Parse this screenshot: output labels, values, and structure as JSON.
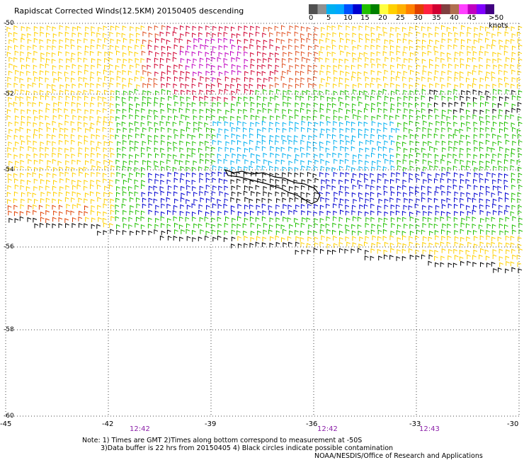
{
  "title": "Rapidscat Corrected Winds(12.5KM) 20150405 descending",
  "colorbar": {
    "labels": [
      "0",
      "5",
      "10",
      "15",
      "20",
      "25",
      "30",
      "35",
      "40",
      "45",
      ">50 knots"
    ],
    "colors": [
      "#505050",
      "#909090",
      "#00b0f0",
      "#00a8ff",
      "#0050ff",
      "#0000d0",
      "#20c000",
      "#008000",
      "#ffff40",
      "#ffd000",
      "#ffb000",
      "#ff8000",
      "#e04000",
      "#ff2040",
      "#d00030",
      "#804040",
      "#b07050",
      "#ff40ff",
      "#c000c0",
      "#8000ff",
      "#400080"
    ]
  },
  "lat_labels": [
    "-50",
    "-52",
    "-54",
    "-56",
    "-58",
    "-60"
  ],
  "lon_labels": [
    "-45",
    "-42",
    "-39",
    "-36",
    "-33",
    "-30"
  ],
  "time_labels": [
    "12:42",
    "12:42",
    "12:43"
  ],
  "notes": [
    "Note: 1) Times are GMT 2)Times along bottom correspond to measurement at -50S",
    "3)Data buffer is 22 hrs from 20150405 4) Black circles indicate possible contamination",
    "NOAA/NESDIS/Office of Research and Applications"
  ]
}
